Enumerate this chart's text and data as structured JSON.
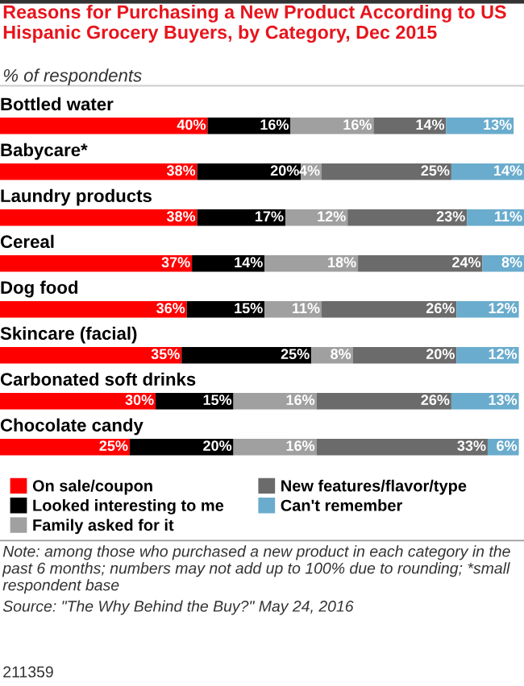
{
  "chart_data": {
    "type": "bar",
    "orientation": "horizontal",
    "stacked": true,
    "title": "Reasons for Purchasing a New Product According to US Hispanic Grocery Buyers, by Category, Dec 2015",
    "subtitle": "% of respondents",
    "categories": [
      "Bottled water",
      "Babycare*",
      "Laundry products",
      "Cereal",
      "Dog food",
      "Skincare (facial)",
      "Carbonated soft drinks",
      "Chocolate candy"
    ],
    "series": [
      {
        "name": "On sale/coupon",
        "color": "#ff0000",
        "values": [
          40,
          38,
          38,
          37,
          36,
          35,
          30,
          25
        ],
        "value_labels": [
          "40%",
          "38%",
          "38%",
          "37%",
          "36%",
          "35%",
          "30%",
          "25%"
        ]
      },
      {
        "name": "Looked interesting to me",
        "color": "#000000",
        "values": [
          16,
          20,
          17,
          14,
          15,
          25,
          15,
          20
        ],
        "value_labels": [
          "16%",
          "20%",
          "17%",
          "14%",
          "15%",
          "25%",
          "15%",
          "20%"
        ]
      },
      {
        "name": "Family asked for it",
        "color": "#a0a0a0",
        "values": [
          16,
          4,
          12,
          18,
          11,
          8,
          16,
          16
        ],
        "value_labels": [
          "16%",
          "4%",
          "12%",
          "18%",
          "11%",
          "8%",
          "16%",
          "16%"
        ]
      },
      {
        "name": "New features/flavor/type",
        "color": "#6b6b6b",
        "values": [
          14,
          25,
          23,
          24,
          26,
          20,
          26,
          33
        ],
        "value_labels": [
          "14%",
          "25%",
          "23%",
          "24%",
          "26%",
          "20%",
          "26%",
          "33%"
        ]
      },
      {
        "name": "Can't remember",
        "color": "#6aaccd",
        "values": [
          13,
          14,
          11,
          8,
          12,
          12,
          13,
          6
        ],
        "value_labels": [
          "13%",
          "14%",
          "11%",
          "8%",
          "12%",
          "12%",
          "13%",
          "6%"
        ]
      }
    ],
    "legend": "bottom",
    "tick_labels": false,
    "annotations": [
      "Note: among those who purchased a new product in each category in the past 6 months; numbers may not add up to 100% due to rounding; *small respondent base",
      "Source: \"The Why Behind the Buy?\" May 24, 2016",
      "211359"
    ]
  }
}
